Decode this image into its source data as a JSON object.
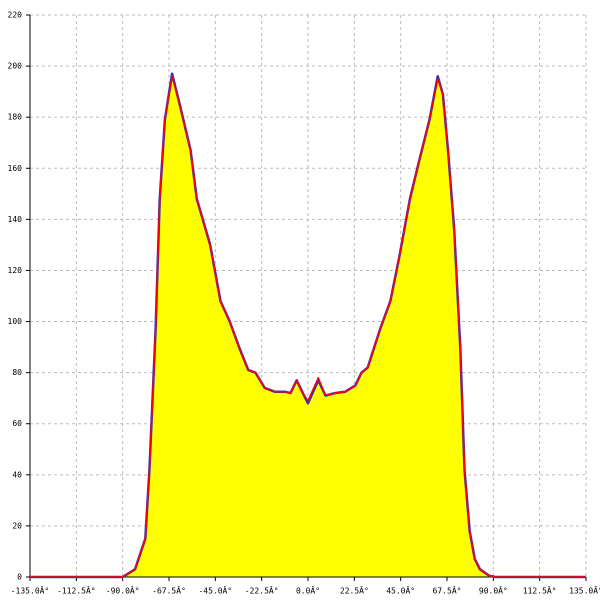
{
  "chart_data": {
    "type": "area",
    "x": [
      -135,
      -90,
      -84,
      -79,
      -77,
      -74,
      -72,
      -69.5,
      -66,
      -62,
      -57,
      -54,
      -47.5,
      -42.5,
      -38,
      -33,
      -29,
      -25.5,
      -21,
      -16,
      -11,
      -8.5,
      -5.5,
      -2.5,
      0,
      5,
      8.5,
      13,
      18,
      23,
      26,
      29,
      35,
      40,
      44.5,
      49.5,
      54,
      59,
      63,
      65.5,
      68,
      71,
      74,
      76,
      78.5,
      81,
      83.5,
      88,
      91,
      135
    ],
    "series": [
      {
        "color": "#3030c0",
        "fill": "#ffff00",
        "values": [
          0,
          0,
          3,
          15,
          42,
          97,
          148,
          179,
          197,
          184,
          167,
          148,
          130,
          108,
          100,
          89,
          81,
          80,
          74,
          72.5,
          72.5,
          72,
          77,
          72,
          68,
          77,
          71,
          72,
          72.5,
          75,
          80,
          82,
          97,
          108,
          126,
          148,
          163,
          179,
          196,
          189,
          167,
          136,
          89,
          42,
          18,
          7,
          3,
          0.5,
          0,
          0
        ]
      },
      {
        "color": "#ff0000",
        "values": [
          0,
          0,
          3,
          15,
          42,
          97,
          148,
          179,
          196,
          184,
          167,
          148,
          130,
          108,
          100,
          89,
          81,
          80,
          74,
          72.5,
          72.5,
          72,
          77,
          72,
          69,
          78,
          71,
          72,
          72.5,
          75,
          80,
          82,
          97,
          108,
          126,
          148,
          163,
          179,
          195,
          189,
          167,
          136,
          89,
          42,
          18,
          7,
          3,
          0.5,
          0,
          0
        ]
      }
    ],
    "xlim": [
      -135,
      135
    ],
    "xticks": [
      {
        "value": -135,
        "label": "-135.0Â°"
      },
      {
        "value": -112.5,
        "label": "-112.5Â°"
      },
      {
        "value": -90,
        "label": "-90.0Â°"
      },
      {
        "value": -67.5,
        "label": "-67.5Â°"
      },
      {
        "value": -45,
        "label": "-45.0Â°"
      },
      {
        "value": -22.5,
        "label": "-22.5Â°"
      },
      {
        "value": 0,
        "label": "0.0Â°"
      },
      {
        "value": 22.5,
        "label": "22.5Â°"
      },
      {
        "value": 45,
        "label": "45.0Â°"
      },
      {
        "value": 67.5,
        "label": "67.5Â°"
      },
      {
        "value": 90,
        "label": "90.0Â°"
      },
      {
        "value": 112.5,
        "label": "112.5Â°"
      },
      {
        "value": 135,
        "label": "135.0Â°"
      }
    ],
    "ylim": [
      0,
      220
    ],
    "yticks": [
      0,
      20,
      40,
      60,
      80,
      100,
      120,
      140,
      160,
      180,
      200,
      220
    ],
    "grid": true
  }
}
